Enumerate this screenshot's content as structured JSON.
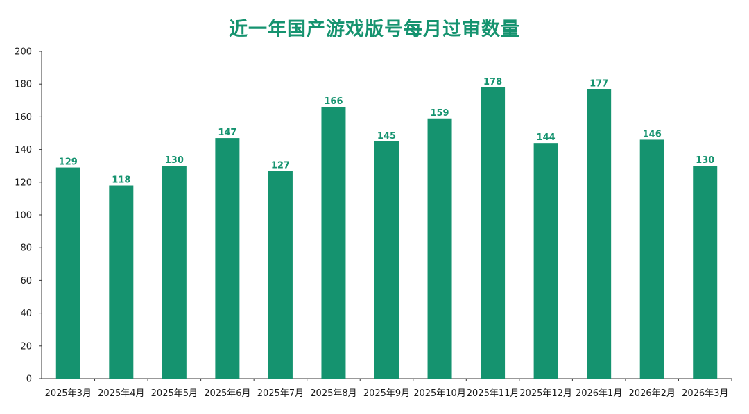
{
  "chart_data": {
    "type": "bar",
    "title": "近一年国产游戏版号每月过审数量",
    "categories": [
      "2025年3月",
      "2025年4月",
      "2025年5月",
      "2025年6月",
      "2025年7月",
      "2025年8月",
      "2025年9月",
      "2025年10月",
      "2025年11月",
      "2025年12月",
      "2026年1月",
      "2026年2月",
      "2026年3月"
    ],
    "values": [
      129,
      118,
      130,
      147,
      127,
      166,
      145,
      159,
      178,
      144,
      177,
      146,
      130
    ],
    "xlabel": "",
    "ylabel": "",
    "ylim": [
      0,
      200
    ],
    "yticks": [
      0,
      20,
      40,
      60,
      80,
      100,
      120,
      140,
      160,
      180,
      200
    ],
    "grid": false,
    "legend": "none",
    "data_labels": true,
    "colors": {
      "bar": "#15936f",
      "title": "#15936f",
      "data_label": "#15936f",
      "axis": "#333333"
    }
  }
}
